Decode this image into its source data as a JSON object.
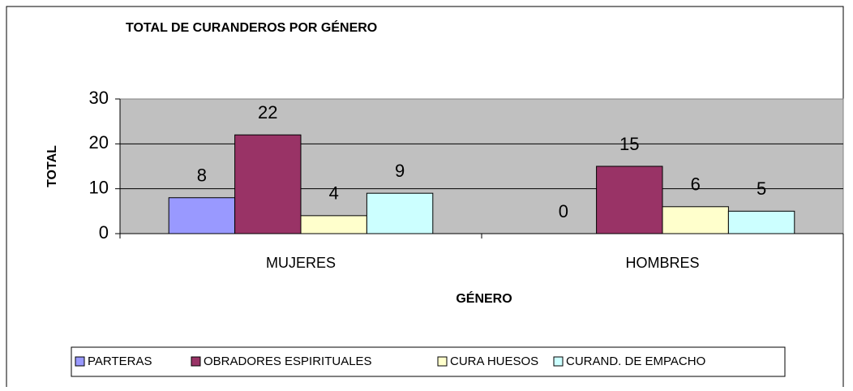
{
  "chart_data": {
    "type": "bar",
    "title": "TOTAL DE CURANDEROS POR GÉNERO",
    "x_label": "GÉNERO",
    "y_label": "TOTAL",
    "categories": [
      "MUJERES",
      "HOMBRES"
    ],
    "series": [
      {
        "name": "PARTERAS",
        "color": "#9999ff",
        "values": [
          8,
          0
        ]
      },
      {
        "name": "OBRADORES ESPIRITUALES",
        "color": "#993366",
        "values": [
          22,
          15
        ]
      },
      {
        "name": "CURA HUESOS",
        "color": "#ffffcc",
        "values": [
          4,
          6
        ]
      },
      {
        "name": "CURAND. DE EMPACHO",
        "color": "#ccffff",
        "values": [
          9,
          5
        ]
      }
    ],
    "ylim": [
      0,
      30
    ],
    "yticks": [
      0,
      10,
      20,
      30
    ],
    "grid": true,
    "legend": "bottom"
  }
}
